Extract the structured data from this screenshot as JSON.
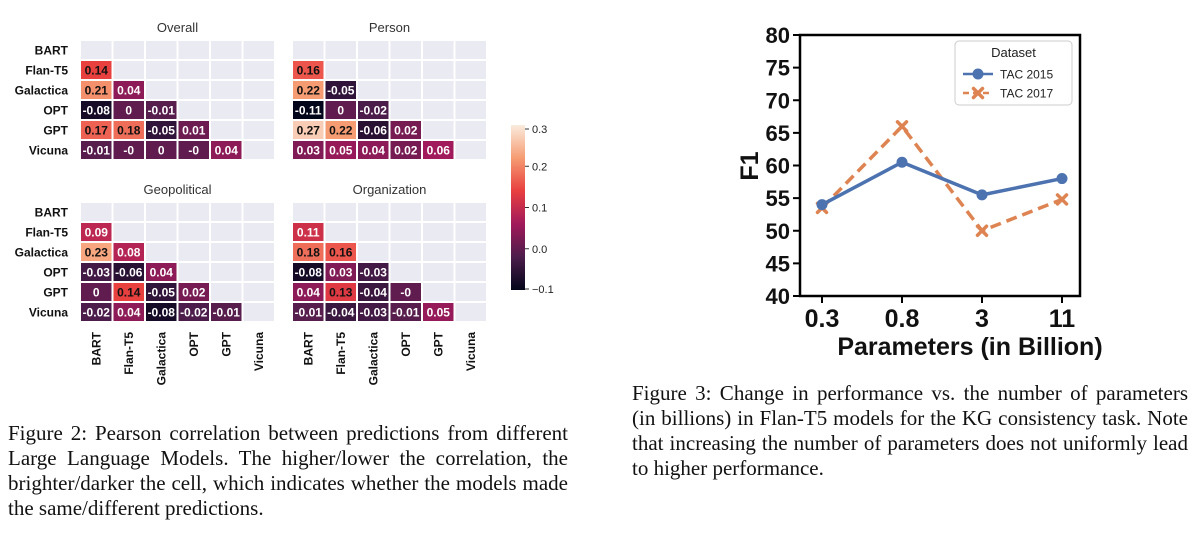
{
  "figure2": {
    "caption": "Figure 2: Pearson correlation between predictions from different Large Language Models. The higher/lower the correlation, the brighter/darker the cell, which indicates whether the models made the same/different predictions."
  },
  "figure3": {
    "caption": "Figure 3: Change in performance vs. the number of parameters (in billions) in Flan-T5 models for the KG consistency task. Note that increasing the number of parameters does not uniformly lead to higher performance."
  },
  "colorbar": {
    "ticks": [
      "0.3",
      "0.2",
      "0.1",
      "0.0",
      "−0.1"
    ],
    "values": [
      0.3,
      0.2,
      0.1,
      0.0,
      -0.1
    ],
    "range": [
      -0.1,
      0.3
    ],
    "colors": [
      "#03051a",
      "#4c1d4b",
      "#a11a5b",
      "#e83f3f",
      "#f69c73",
      "#faebdd"
    ]
  },
  "chart_data": [
    {
      "type": "heatmap",
      "title": "Overall",
      "models": [
        "BART",
        "Flan-T5",
        "Galactica",
        "OPT",
        "GPT",
        "Vicuna"
      ],
      "lower_triangle": [
        [],
        [
          "0.14"
        ],
        [
          "0.21",
          "0.04"
        ],
        [
          "-0.08",
          "0",
          "-0.01"
        ],
        [
          "0.17",
          "0.18",
          "-0.05",
          "0.01"
        ],
        [
          "-0.01",
          "-0",
          "0",
          "-0",
          "0.04"
        ]
      ]
    },
    {
      "type": "heatmap",
      "title": "Person",
      "models": [
        "BART",
        "Flan-T5",
        "Galactica",
        "OPT",
        "GPT",
        "Vicuna"
      ],
      "lower_triangle": [
        [],
        [
          "0.16"
        ],
        [
          "0.22",
          "-0.05"
        ],
        [
          "-0.11",
          "0",
          "-0.02"
        ],
        [
          "0.27",
          "0.22",
          "-0.06",
          "0.02"
        ],
        [
          "0.03",
          "0.05",
          "0.04",
          "0.02",
          "0.06"
        ]
      ]
    },
    {
      "type": "heatmap",
      "title": "Geopolitical",
      "models": [
        "BART",
        "Flan-T5",
        "Galactica",
        "OPT",
        "GPT",
        "Vicuna"
      ],
      "lower_triangle": [
        [],
        [
          "0.09"
        ],
        [
          "0.23",
          "0.08"
        ],
        [
          "-0.03",
          "-0.06",
          "0.04"
        ],
        [
          "0",
          "0.14",
          "-0.05",
          "0.02"
        ],
        [
          "-0.02",
          "0.04",
          "-0.08",
          "-0.02",
          "-0.01"
        ]
      ]
    },
    {
      "type": "heatmap",
      "title": "Organization",
      "models": [
        "BART",
        "Flan-T5",
        "Galactica",
        "OPT",
        "GPT",
        "Vicuna"
      ],
      "lower_triangle": [
        [],
        [
          "0.11"
        ],
        [
          "0.18",
          "0.16"
        ],
        [
          "-0.08",
          "0.03",
          "-0.03"
        ],
        [
          "0.04",
          "0.13",
          "-0.04",
          "-0"
        ],
        [
          "-0.01",
          "-0.04",
          "-0.03",
          "-0.01",
          "0.05"
        ]
      ]
    },
    {
      "type": "line",
      "categories": [
        "0.3",
        "0.8",
        "3",
        "11"
      ],
      "xlabel": "Parameters (in Billion)",
      "ylabel": "F1",
      "ylim": [
        40,
        80
      ],
      "yticks": [
        "40",
        "45",
        "50",
        "55",
        "60",
        "65",
        "70",
        "75",
        "80"
      ],
      "legend_title": "Dataset",
      "legend_position": "top-right",
      "series": [
        {
          "name": "TAC 2015",
          "values": [
            54,
            60.5,
            55.5,
            58
          ],
          "color": "#4c72b0",
          "marker": "circle",
          "dash": "solid"
        },
        {
          "name": "TAC 2017",
          "values": [
            53.5,
            66,
            50,
            54.8
          ],
          "color": "#dd8452",
          "marker": "x",
          "dash": "dashed"
        }
      ]
    }
  ]
}
